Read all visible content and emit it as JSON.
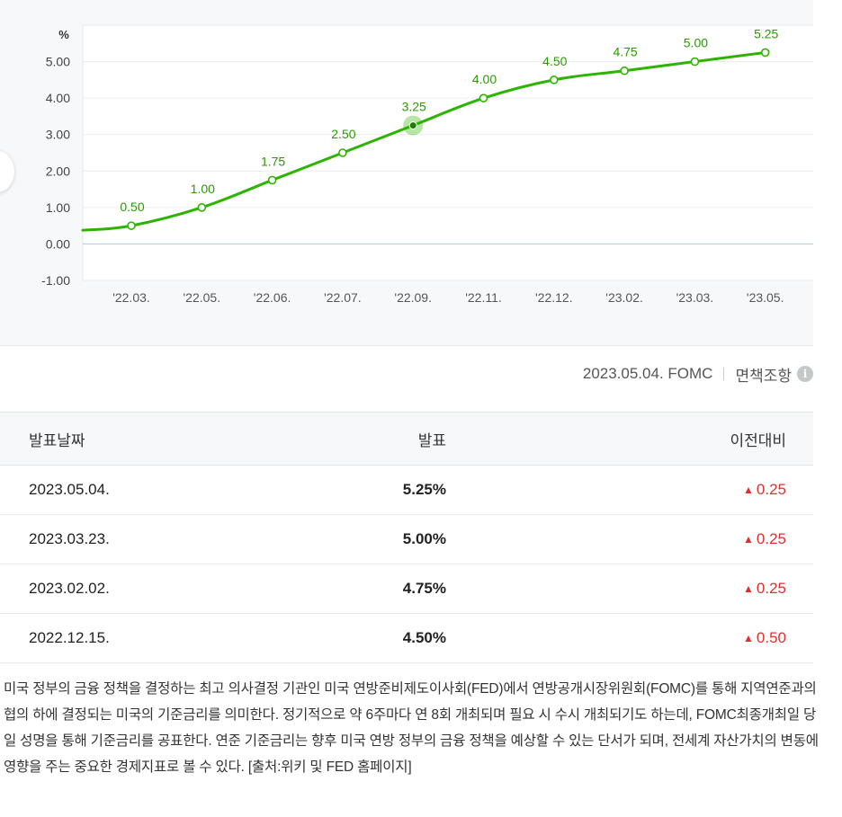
{
  "chart_data": {
    "type": "line",
    "ylabel": "%",
    "ylim": [
      -1.0,
      6.0
    ],
    "yticks": [
      "5.00",
      "4.00",
      "3.00",
      "2.00",
      "1.00",
      "0.00",
      "-1.00"
    ],
    "yticks_values": [
      5,
      4,
      3,
      2,
      1,
      0,
      -1
    ],
    "categories": [
      "'22.03.",
      "'22.05.",
      "'22.06.",
      "'22.07.",
      "'22.09.",
      "'22.11.",
      "'22.12.",
      "'23.02.",
      "'23.03.",
      "'23.05."
    ],
    "values": [
      0.5,
      1.0,
      1.75,
      2.5,
      3.25,
      4.0,
      4.5,
      4.75,
      5.0,
      5.25
    ],
    "data_labels": [
      "0.50",
      "1.00",
      "1.75",
      "2.50",
      "3.25",
      "4.00",
      "4.50",
      "4.75",
      "5.00",
      "5.25"
    ],
    "highlight_index": 4,
    "line_color": "#2db400",
    "label_color": "#2a9a00",
    "grid": true
  },
  "meta": {
    "announcement": "2023.05.04. FOMC",
    "disclaimer": "면책조항",
    "info_glyph": "i"
  },
  "table": {
    "headers": {
      "date": "발표날짜",
      "value": "발표",
      "change": "이전대비"
    },
    "up_glyph": "▲",
    "rows": [
      {
        "date": "2023.05.04.",
        "value": "5.25%",
        "change": "0.25"
      },
      {
        "date": "2023.03.23.",
        "value": "5.00%",
        "change": "0.25"
      },
      {
        "date": "2023.02.02.",
        "value": "4.75%",
        "change": "0.25"
      },
      {
        "date": "2022.12.15.",
        "value": "4.50%",
        "change": "0.50"
      }
    ]
  },
  "description": "미국 정부의 금융 정책을 결정하는 최고 의사결정 기관인 미국 연방준비제도이사회(FED)에서 연방공개시장위원회(FOMC)를 통해 지역연준과의 협의 하에 결정되는 미국의 기준금리를 의미한다. 정기적으로 약 6주마다 연 8회 개최되며 필요 시 수시 개최되기도 하는데, FOMC최종개최일 당일 성명을 통해 기준금리를 공표한다. 연준 기준금리는 향후 미국 연방 정부의 금융 정책을 예상할 수 있는 단서가 되며, 전세계 자산가치의 변동에 영향을 주는 중요한 경제지표로 볼 수 있다. [출처:위키 및 FED 홈페이지]",
  "colors": {
    "up": "#e0302d",
    "accent": "#2db400"
  }
}
